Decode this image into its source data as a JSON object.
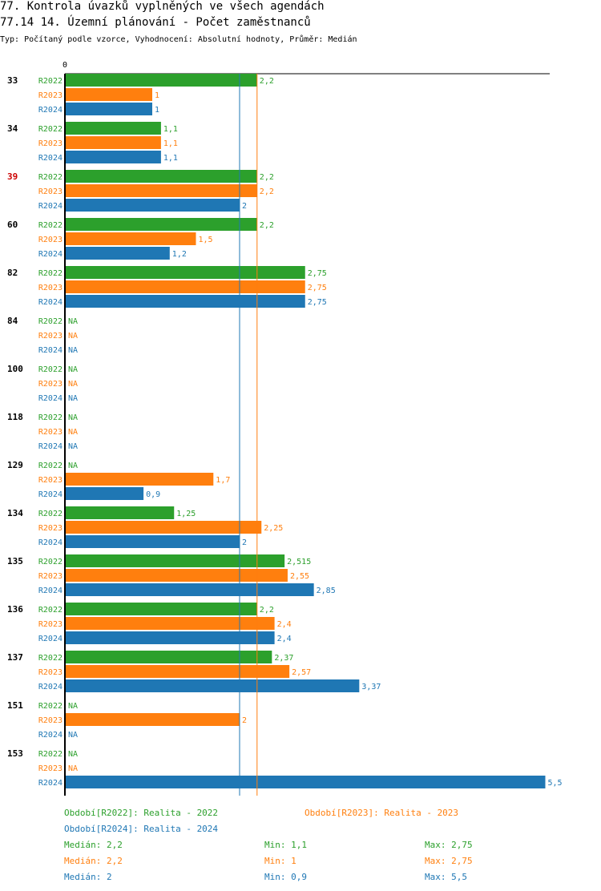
{
  "header": {
    "title_line1": "77. Kontrola úvazků vyplněných ve všech agendách",
    "title_line2": "77.14 14. Územní plánování - Počet zaměstnanců",
    "subtitle": "Typ: Počítaný podle vzorce, Vyhodnocení: Absolutní hodnoty, Průměr: Medián"
  },
  "colors": {
    "R2022": "#2ca02c",
    "R2023": "#ff7f0e",
    "R2024": "#1f77b4",
    "highlight": "#cc0000"
  },
  "chart_data": {
    "type": "bar",
    "orientation": "horizontal",
    "axis_label_zero": "0",
    "xlim": [
      0,
      5.5
    ],
    "series_names": [
      "R2022",
      "R2023",
      "R2024"
    ],
    "categories": [
      {
        "label": "33",
        "highlight": false,
        "values": [
          "2,2",
          "1",
          "1"
        ]
      },
      {
        "label": "34",
        "highlight": false,
        "values": [
          "1,1",
          "1,1",
          "1,1"
        ]
      },
      {
        "label": "39",
        "highlight": true,
        "values": [
          "2,2",
          "2,2",
          "2"
        ]
      },
      {
        "label": "60",
        "highlight": false,
        "values": [
          "2,2",
          "1,5",
          "1,2"
        ]
      },
      {
        "label": "82",
        "highlight": false,
        "values": [
          "2,75",
          "2,75",
          "2,75"
        ]
      },
      {
        "label": "84",
        "highlight": false,
        "values": [
          "NA",
          "NA",
          "NA"
        ]
      },
      {
        "label": "100",
        "highlight": false,
        "values": [
          "NA",
          "NA",
          "NA"
        ]
      },
      {
        "label": "118",
        "highlight": false,
        "values": [
          "NA",
          "NA",
          "NA"
        ]
      },
      {
        "label": "129",
        "highlight": false,
        "values": [
          "NA",
          "1,7",
          "0,9"
        ]
      },
      {
        "label": "134",
        "highlight": false,
        "values": [
          "1,25",
          "2,25",
          "2"
        ]
      },
      {
        "label": "135",
        "highlight": false,
        "values": [
          "2,515",
          "2,55",
          "2,85"
        ]
      },
      {
        "label": "136",
        "highlight": false,
        "values": [
          "2,2",
          "2,4",
          "2,4"
        ]
      },
      {
        "label": "137",
        "highlight": false,
        "values": [
          "2,37",
          "2,57",
          "3,37"
        ]
      },
      {
        "label": "151",
        "highlight": false,
        "values": [
          "NA",
          "2",
          "NA"
        ]
      },
      {
        "label": "153",
        "highlight": false,
        "values": [
          "NA",
          "NA",
          "5,5"
        ]
      }
    ],
    "reference_lines": [
      {
        "series": "R2024",
        "value": 2
      },
      {
        "series": "R2023",
        "value": 2.2
      }
    ]
  },
  "legend": {
    "r2022": "Období[R2022]: Realita - 2022",
    "r2023": "Období[R2023]: Realita - 2023",
    "r2024": "Období[R2024]: Realita - 2024"
  },
  "stats": {
    "r2022": {
      "median": "Medián: 2,2",
      "min": "Min: 1,1",
      "max": "Max: 2,75"
    },
    "r2023": {
      "median": "Medián: 2,2",
      "min": "Min: 1",
      "max": "Max: 2,75"
    },
    "r2024": {
      "median": "Medián: 2",
      "min": "Min: 0,9",
      "max": "Max: 5,5"
    }
  }
}
